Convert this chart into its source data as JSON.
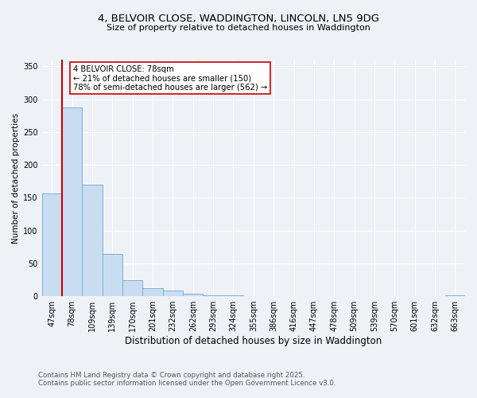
{
  "title_line1": "4, BELVOIR CLOSE, WADDINGTON, LINCOLN, LN5 9DG",
  "title_line2": "Size of property relative to detached houses in Waddington",
  "categories": [
    "47sqm",
    "78sqm",
    "109sqm",
    "139sqm",
    "170sqm",
    "201sqm",
    "232sqm",
    "262sqm",
    "293sqm",
    "324sqm",
    "355sqm",
    "386sqm",
    "416sqm",
    "447sqm",
    "478sqm",
    "509sqm",
    "539sqm",
    "570sqm",
    "601sqm",
    "632sqm",
    "663sqm"
  ],
  "values": [
    157,
    287,
    170,
    65,
    25,
    12,
    9,
    4,
    2,
    1,
    0,
    0,
    0,
    0,
    0,
    0,
    0,
    0,
    0,
    0,
    2
  ],
  "bar_color": "#c9ddf0",
  "bar_edge_color": "#7aafd4",
  "annotation_text": "4 BELVOIR CLOSE: 78sqm\n← 21% of detached houses are smaller (150)\n78% of semi-detached houses are larger (562) →",
  "vline_x_idx": 1,
  "vline_color": "#cc0000",
  "xlabel": "Distribution of detached houses by size in Waddington",
  "ylabel": "Number of detached properties",
  "ylim": [
    0,
    360
  ],
  "yticks": [
    0,
    50,
    100,
    150,
    200,
    250,
    300,
    350
  ],
  "footnote1": "Contains HM Land Registry data © Crown copyright and database right 2025.",
  "footnote2": "Contains public sector information licensed under the Open Government Licence v3.0.",
  "bg_color": "#eef2f7",
  "grid_color": "#ffffff",
  "annotation_box_color": "#ffffff",
  "annotation_box_edge": "#cc0000",
  "title1_fontsize": 9.5,
  "title2_fontsize": 8.0,
  "xlabel_fontsize": 8.5,
  "ylabel_fontsize": 7.5,
  "tick_fontsize": 7.0,
  "footnote_fontsize": 6.2
}
